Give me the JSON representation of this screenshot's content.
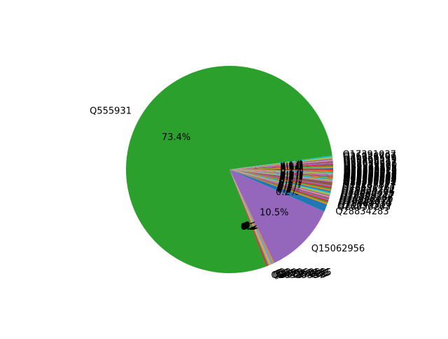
{
  "chart_data": {
    "type": "pie",
    "title": "",
    "legend": "none",
    "start_angle_deg": 0,
    "direction": "counterclockwise",
    "labeled_slices": [
      {
        "label": "Q555931",
        "value": 73.4,
        "pct_label": "73.4%",
        "color": "#2ca02c"
      },
      {
        "label": "Q15062956",
        "value": 10.5,
        "pct_label": "10.5%",
        "color": "#9467bd"
      }
    ],
    "small_slices": [
      {
        "label": "Q28591158",
        "value": 0.2,
        "color": "#1f77b4"
      },
      {
        "label": "Q8951530",
        "value": 0.2,
        "color": "#ff7f0e"
      },
      {
        "label": "Q28925510",
        "value": 0.2,
        "color": "#2ca02c"
      },
      {
        "label": "Q27650297",
        "value": 0.2,
        "color": "#d62728"
      },
      {
        "label": "Q21694327",
        "value": 0.2,
        "color": "#9467bd"
      },
      {
        "label": "Q28826217",
        "value": 0.2,
        "color": "#8c564b"
      },
      {
        "label": "Q20960529",
        "value": 0.2,
        "color": "#e377c2"
      },
      {
        "label": "Q21187599",
        "value": 0.2,
        "color": "#7f7f7f"
      },
      {
        "label": "Q26926707",
        "value": 0.2,
        "color": "#bcbd22"
      },
      {
        "label": "Q17391037",
        "value": 0.2,
        "color": "#17becf"
      },
      {
        "label": "Q28834283",
        "value": 1.1,
        "color": "#1f77b4"
      },
      {
        "label": "Q26836263",
        "value": 0.2,
        "color": "#ff7f0e"
      },
      {
        "label": "Q21695519",
        "value": 0.2,
        "color": "#2ca02c"
      },
      {
        "label": "Q28563239",
        "value": 0.2,
        "color": "#d62728"
      },
      {
        "label": "Q20625611",
        "value": 0.2,
        "color": "#9467bd"
      },
      {
        "label": "Q28582521",
        "value": 0.2,
        "color": "#8c564b"
      },
      {
        "label": "Q26926728",
        "value": 0.2,
        "color": "#e377c2"
      },
      {
        "label": "Q21187368",
        "value": 0.2,
        "color": "#7f7f7f"
      },
      {
        "label": "Q28826247",
        "value": 0.2,
        "color": "#bcbd22"
      },
      {
        "label": "Q28563217",
        "value": 0.2,
        "color": "#17becf"
      },
      {
        "label": "Q20960495",
        "value": 0.2,
        "color": "#1f77b4"
      },
      {
        "label": "Q21694395",
        "value": 0.2,
        "color": "#ff7f0e"
      },
      {
        "label": "Q28834252",
        "value": 0.2,
        "color": "#2ca02c"
      },
      {
        "label": "Q26836212",
        "value": 0.2,
        "color": "#d62728"
      },
      {
        "label": "Q28591187",
        "value": 0.2,
        "color": "#9467bd"
      },
      {
        "label": "Q19288817",
        "value": 0.5,
        "color": "#8c564b"
      },
      {
        "label": "Q28590001",
        "value": 0.1,
        "color": "#e377c2"
      },
      {
        "label": "Q28590002",
        "value": 0.1,
        "color": "#7f7f7f"
      },
      {
        "label": "Q28590003",
        "value": 0.1,
        "color": "#bcbd22"
      },
      {
        "label": "Q28590004",
        "value": 0.1,
        "color": "#17becf"
      },
      {
        "label": "Q28590005",
        "value": 0.1,
        "color": "#1f77b4"
      },
      {
        "label": "Q28590006",
        "value": 0.1,
        "color": "#ff7f0e"
      },
      {
        "label": "Q28590007",
        "value": 0.1,
        "color": "#2ca02c"
      },
      {
        "label": "Q28590008",
        "value": 0.1,
        "color": "#d62728"
      },
      {
        "label": "Q28590009",
        "value": 0.1,
        "color": "#9467bd"
      },
      {
        "label": "Q28590010",
        "value": 0.1,
        "color": "#8c564b"
      },
      {
        "label": "Q28590011",
        "value": 0.1,
        "color": "#e377c2"
      },
      {
        "label": "Q28590012",
        "value": 0.1,
        "color": "#7f7f7f"
      },
      {
        "label": "Q28590013",
        "value": 0.1,
        "color": "#bcbd22"
      },
      {
        "label": "Q28590014",
        "value": 0.1,
        "color": "#17becf"
      },
      {
        "label": "Q28590015",
        "value": 0.1,
        "color": "#1f77b4"
      },
      {
        "label": "Q28590016",
        "value": 0.1,
        "color": "#ff7f0e"
      },
      {
        "label": "Q28590017",
        "value": 0.1,
        "color": "#2ca02c"
      },
      {
        "label": "Q28590018",
        "value": 0.1,
        "color": "#d62728"
      }
    ],
    "bottom_slices": [
      {
        "label": "Q20925557",
        "value": 0.2,
        "color": "#d62728"
      },
      {
        "label": "Q21187455",
        "value": 0.2,
        "color": "#7f7f7f"
      },
      {
        "label": "Q28826285",
        "value": 0.2,
        "color": "#bcbd22"
      },
      {
        "label": "Q26926735",
        "value": 0.2,
        "color": "#e377c2"
      },
      {
        "label": "Q28563265",
        "value": 0.2,
        "color": "#17becf"
      },
      {
        "label": "Q20960555",
        "value": 0.2,
        "color": "#ff7f0e"
      }
    ]
  }
}
